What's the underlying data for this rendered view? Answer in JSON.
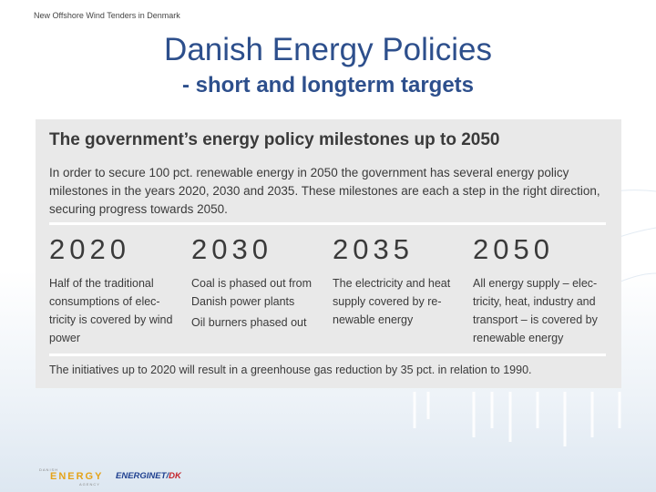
{
  "header": {
    "small_title": "New Offshore Wind Tenders in Denmark"
  },
  "slide": {
    "title": "Danish Energy Policies",
    "subtitle": "- short and longterm targets"
  },
  "panel": {
    "heading": "The government’s energy policy milestones up to 2050",
    "intro": "In order to secure 100 pct. renewable energy in 2050 the government has several energy policy milestones in the years 2020, 2030 and 2035. These milestones are each a step in the right direction, securing progress towards 2050.",
    "milestones": [
      {
        "year": "2020",
        "text": "Half of the traditional consumptions of elec-tricity is covered by wind power",
        "extra": ""
      },
      {
        "year": "2030",
        "text": "Coal is phased out from Danish power plants",
        "extra": "Oil burners phased out"
      },
      {
        "year": "2035",
        "text": "The electricity and heat supply covered by re-newable energy",
        "extra": ""
      },
      {
        "year": "2050",
        "text": "All energy supply – elec-tricity, heat, industry and transport – is covered by renewable energy",
        "extra": ""
      }
    ],
    "footer": "The initiatives up to 2020 will result in a greenhouse gas reduction by 35 pct. in relation to 1990."
  },
  "logos": {
    "energy_top": "DANISH",
    "energy_word": "ENERGY",
    "energy_sub": "AGENCY",
    "energinet_main": "ENERGINET",
    "energinet_suffix": "DK"
  },
  "colors": {
    "title": "#2d4f8c",
    "panel_bg": "#e9e9e9",
    "energy_logo": "#e4a31a",
    "energinet_logo": "#1d3f8f"
  }
}
